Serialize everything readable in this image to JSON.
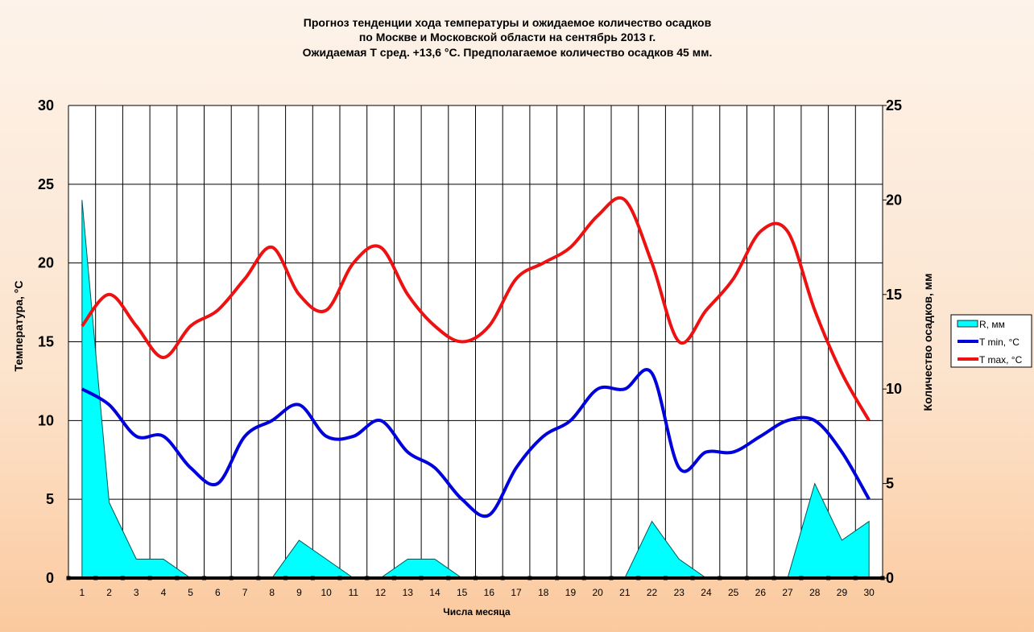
{
  "chart_data": {
    "type": "line",
    "title": [
      "Прогноз тенденции хода температуры и ожидаемое количество осадков",
      "по Москве и Московской области на сентябрь 2013 г.",
      "Ожидаемая Т сред. +13,6 °С. Предполагаемое количество осадков 45 мм."
    ],
    "xlabel": "Числа месяца",
    "ylabel": "Температура, °С",
    "y2label": "Количество осадков, мм",
    "ylim": [
      0,
      30
    ],
    "y2lim": [
      0,
      25
    ],
    "yticks": [
      0,
      5,
      10,
      15,
      20,
      25,
      30
    ],
    "y2ticks": [
      0,
      5,
      10,
      15,
      20,
      25
    ],
    "categories": [
      1,
      2,
      3,
      4,
      5,
      6,
      7,
      8,
      9,
      10,
      11,
      12,
      13,
      14,
      15,
      16,
      17,
      18,
      19,
      20,
      21,
      22,
      23,
      24,
      25,
      26,
      27,
      28,
      29,
      30
    ],
    "grid": true,
    "legend_placement": "right",
    "series": [
      {
        "name": "R, мм",
        "type": "area",
        "axis": "right",
        "color": "#00ffff",
        "values": [
          20,
          4,
          1,
          1,
          0,
          0,
          0,
          0,
          2,
          1,
          0,
          0,
          1,
          1,
          0,
          0,
          0,
          0,
          0,
          0,
          0,
          3,
          1,
          0,
          0,
          0,
          0,
          5,
          2,
          3
        ]
      },
      {
        "name": "T min, °С",
        "type": "line",
        "axis": "left",
        "color": "#0000dd",
        "values": [
          12,
          11,
          9,
          9,
          7,
          6,
          9,
          10,
          11,
          9,
          9,
          10,
          8,
          7,
          5,
          4,
          7,
          9,
          10,
          12,
          12,
          13,
          7,
          8,
          8,
          9,
          10,
          10,
          8,
          5
        ]
      },
      {
        "name": "T max, °С",
        "type": "line",
        "axis": "left",
        "color": "#ee1111",
        "values": [
          16,
          18,
          16,
          14,
          16,
          17,
          19,
          21,
          18,
          17,
          20,
          21,
          18,
          16,
          15,
          16,
          19,
          20,
          21,
          23,
          24,
          20,
          15,
          17,
          19,
          22,
          22,
          17,
          13,
          10
        ]
      }
    ]
  }
}
